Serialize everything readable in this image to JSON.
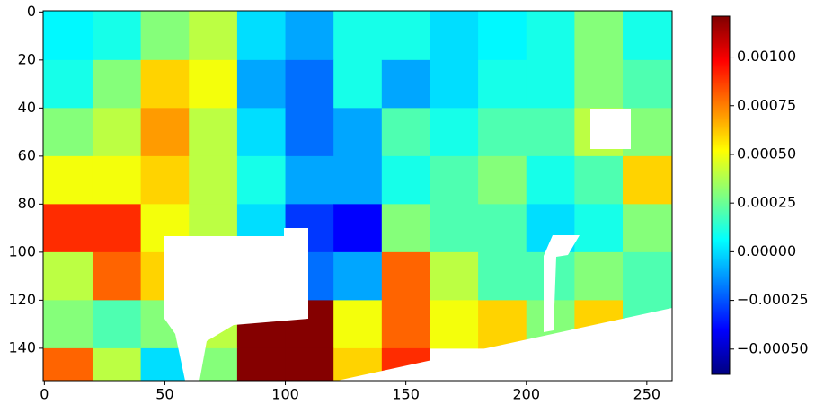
{
  "chart_data": {
    "type": "heatmap",
    "xbins": [
      -0.5,
      20,
      40,
      60,
      80,
      100,
      120,
      140,
      160,
      180,
      200,
      220,
      240,
      260.5
    ],
    "ybins": [
      -0.5,
      20,
      40,
      60,
      80,
      100,
      120,
      140,
      153.5
    ],
    "z": [
      [
        5e-05,
        0.0001,
        0.0003,
        0.0004,
        0.0,
        -0.0001,
        0.0001,
        0.0001,
        0.0,
        5e-05,
        0.0001,
        0.0003,
        0.0001
      ],
      [
        0.0001,
        0.0003,
        0.0006,
        0.0005,
        -0.0001,
        -0.0002,
        0.0001,
        -0.0001,
        0.0,
        0.0001,
        0.0001,
        0.0003,
        0.0002
      ],
      [
        0.0003,
        0.0004,
        0.0007,
        0.0004,
        0.0,
        -0.0002,
        -0.0001,
        0.0002,
        0.0001,
        0.0002,
        0.0002,
        0.0004,
        0.0003
      ],
      [
        0.0005,
        0.0005,
        0.0006,
        0.0004,
        0.0001,
        -0.0001,
        -0.0001,
        0.0001,
        0.0002,
        0.0003,
        0.0001,
        0.0002,
        0.0006
      ],
      [
        0.0009,
        0.0009,
        0.0005,
        0.0004,
        0.0,
        -0.0003,
        -0.0004,
        0.0003,
        0.0002,
        0.0002,
        0.0,
        0.0001,
        0.0003
      ],
      [
        0.0004,
        0.0008,
        0.0006,
        null,
        null,
        -0.0002,
        -0.0001,
        0.0008,
        0.0004,
        0.0002,
        0.0002,
        0.0003,
        0.0002
      ],
      [
        0.0003,
        0.0002,
        0.0003,
        0.0004,
        0.0012,
        0.0012,
        0.0005,
        0.0008,
        0.0005,
        0.0006,
        0.0003,
        0.0006,
        0.0002
      ],
      [
        0.0008,
        0.0004,
        0.0,
        0.0003,
        0.0012,
        0.0012,
        0.0006,
        0.0009,
        null,
        null,
        null,
        null,
        null
      ]
    ],
    "xlim": [
      -0.5,
      260.5
    ],
    "ylim": [
      153.5,
      -0.5
    ],
    "xticks": [
      0,
      50,
      100,
      150,
      200,
      250
    ],
    "yticks": [
      0,
      20,
      40,
      60,
      80,
      100,
      120,
      140
    ],
    "colormap": "jet",
    "clim": [
      -0.00063,
      0.00121
    ],
    "cticks": [
      {
        "value": -0.0005,
        "label": "−0.00050"
      },
      {
        "value": -0.00025,
        "label": "−0.00025"
      },
      {
        "value": 0,
        "label": "0.00000"
      },
      {
        "value": 0.00025,
        "label": "0.00025"
      },
      {
        "value": 0.0005,
        "label": "0.00050"
      },
      {
        "value": 0.00075,
        "label": "0.00075"
      },
      {
        "value": 0.001,
        "label": "0.00100"
      }
    ]
  }
}
